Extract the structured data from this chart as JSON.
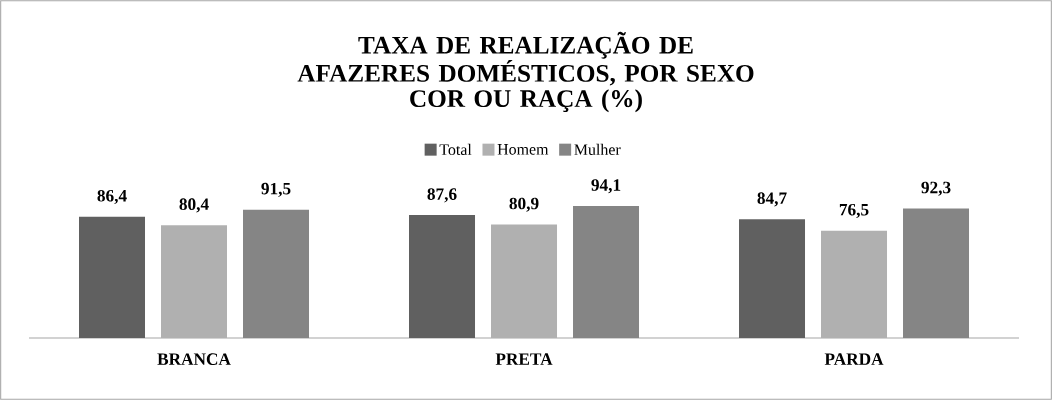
{
  "chart_data": {
    "type": "bar",
    "title": "TAXA DE REALIZAÇÃO DE AFAZERES DOMÉSTICOS, POR SEXO",
    "subtitle": "COR OU RAÇA (%)",
    "categories": [
      "BRANCA",
      "PRETA",
      "PARDA"
    ],
    "series": [
      {
        "name": "Total",
        "color": "#606060",
        "values": [
          86.4,
          87.6,
          84.7
        ],
        "value_labels": [
          "86,4",
          "87,6",
          "84,7"
        ]
      },
      {
        "name": "Homem",
        "color": "#b0b0b0",
        "values": [
          80.4,
          80.9,
          76.5
        ],
        "value_labels": [
          "80,4",
          "80,9",
          "76,5"
        ]
      },
      {
        "name": "Mulher",
        "color": "#858585",
        "values": [
          91.5,
          94.1,
          92.3
        ],
        "value_labels": [
          "91,5",
          "94,1",
          "92,3"
        ]
      }
    ],
    "legend": "top"
  }
}
